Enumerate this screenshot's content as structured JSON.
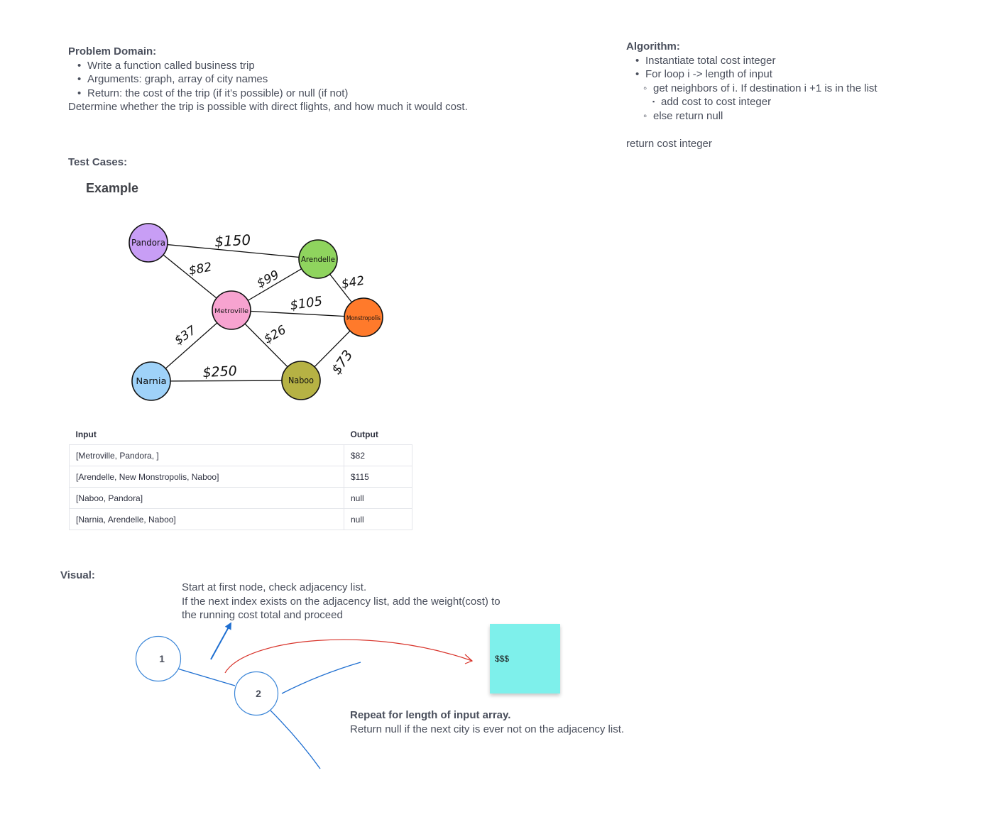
{
  "problem_domain": {
    "heading": "Problem Domain:",
    "bullets": [
      "Write a function called business trip",
      "Arguments: graph, array of city names",
      "Return: the cost of the trip (if it’s possible) or null (if not)"
    ],
    "summary": "Determine whether the trip is possible with direct flights, and how much it would cost."
  },
  "algorithm": {
    "heading": "Algorithm:",
    "step1": "Instantiate total cost integer",
    "step2": "For loop i -> length of input",
    "step2a": "get neighbors of i.  If destination i +1 is in the list",
    "step2a1": "add cost to cost integer",
    "step2b": "else return null",
    "final": "return cost integer"
  },
  "test_cases": {
    "heading": "Test Cases:",
    "example_title": "Example",
    "table": {
      "headers": [
        "Input",
        "Output"
      ],
      "rows": [
        [
          "[Metroville, Pandora, ]",
          "$82"
        ],
        [
          "[Arendelle, New Monstropolis, Naboo]",
          "$115"
        ],
        [
          "[Naboo, Pandora]",
          "null"
        ],
        [
          "[Narnia, Arendelle, Naboo]",
          "null"
        ]
      ]
    }
  },
  "graph": {
    "nodes": [
      {
        "name": "Pandora",
        "color": "#c89ef5"
      },
      {
        "name": "Arendelle",
        "color": "#8fd45e"
      },
      {
        "name": "Metroville",
        "color": "#f7a3d0"
      },
      {
        "name": "Monstropolis",
        "color": "#ff7a2b"
      },
      {
        "name": "Narnia",
        "color": "#9fd2f9"
      },
      {
        "name": "Naboo",
        "color": "#b6b244"
      }
    ],
    "edges": [
      {
        "from": "Pandora",
        "to": "Arendelle",
        "cost": "$150"
      },
      {
        "from": "Pandora",
        "to": "Metroville",
        "cost": "$82"
      },
      {
        "from": "Metroville",
        "to": "Arendelle",
        "cost": "$99"
      },
      {
        "from": "Arendelle",
        "to": "Monstropolis",
        "cost": "$42"
      },
      {
        "from": "Metroville",
        "to": "Monstropolis",
        "cost": "$105"
      },
      {
        "from": "Metroville",
        "to": "Narnia",
        "cost": "$37"
      },
      {
        "from": "Metroville",
        "to": "Naboo",
        "cost": "$26"
      },
      {
        "from": "Narnia",
        "to": "Naboo",
        "cost": "$250"
      },
      {
        "from": "Naboo",
        "to": "Monstropolis",
        "cost": "$73"
      }
    ]
  },
  "visual": {
    "heading": "Visual:",
    "note_line1": "Start at first node, check adjacency list.",
    "note_line2": "If the next index exists on the adjacency list, add the weight(cost) to",
    "note_line3": "the running cost total and proceed",
    "node1": "1",
    "node2": "2",
    "sticky_text": "$$$",
    "repeat_bold": "Repeat for length of input array.",
    "repeat_text": "Return null if the next city is ever not on the adjacency list.",
    "line_color": "#1f6fd1",
    "arrow_color": "#d8332a"
  }
}
